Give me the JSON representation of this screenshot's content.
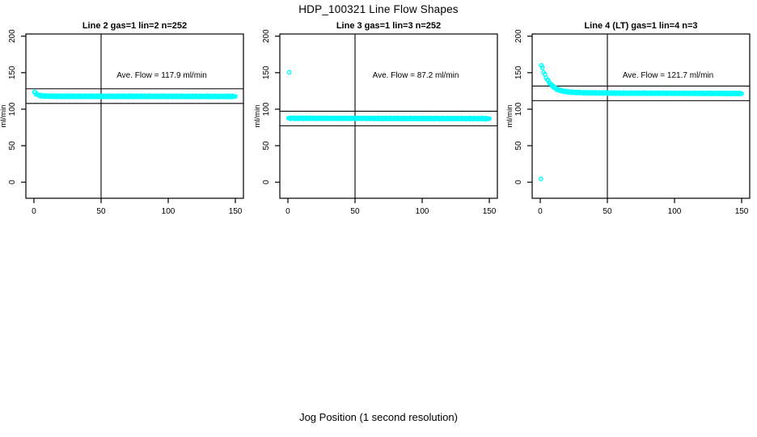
{
  "page": {
    "title": "HDP_100321  Line Flow Shapes",
    "xlabel": "Jog Position (1 second resolution)"
  },
  "colors": {
    "points": "#00FFFF",
    "axis": "#000000",
    "background": "#FFFFFF"
  },
  "chart_data": [
    {
      "type": "scatter",
      "title": "Line 2 gas=1 lin=2 n=252",
      "ylabel": "ml/min",
      "annotation": "Ave. Flow =  117.9  ml/min",
      "ave_flow": 117.9,
      "n": 252,
      "x_ticks": [
        0,
        50,
        100,
        150
      ],
      "y_ticks": [
        0,
        50,
        100,
        150,
        200
      ],
      "xlim": [
        -6,
        156
      ],
      "ylim": [
        -22,
        203
      ],
      "hlines": [
        107.9,
        127.9
      ],
      "vline": 50,
      "jitter": 1.1,
      "profile": [
        [
          0.3,
          123.5
        ],
        [
          0.8,
          122.5
        ],
        [
          1.5,
          121.3
        ],
        [
          2.5,
          120.0
        ],
        [
          3.5,
          119.2
        ],
        [
          5,
          118.5
        ],
        [
          7,
          118.1
        ],
        [
          10,
          117.9
        ],
        [
          20,
          117.7
        ],
        [
          150,
          117.5
        ]
      ],
      "outliers": []
    },
    {
      "type": "scatter",
      "title": "Line 3 gas=1 lin=3 n=252",
      "ylabel": "ml/min",
      "annotation": "Ave. Flow =  87.2  ml/min",
      "ave_flow": 87.2,
      "n": 252,
      "x_ticks": [
        0,
        50,
        100,
        150
      ],
      "y_ticks": [
        0,
        50,
        100,
        150,
        200
      ],
      "xlim": [
        -6,
        156
      ],
      "ylim": [
        -22,
        203
      ],
      "hlines": [
        77.2,
        97.2
      ],
      "vline": 50,
      "jitter": 0.9,
      "profile": [
        [
          0.5,
          87.6
        ],
        [
          75,
          87.3
        ],
        [
          150,
          87.1
        ]
      ],
      "outliers": [
        [
          1,
          150.5
        ]
      ]
    },
    {
      "type": "scatter",
      "title": "Line 4 (LT) gas=1 lin=4 n=3",
      "ylabel": "ml/min",
      "annotation": "Ave. Flow =  121.7  ml/min",
      "ave_flow": 121.7,
      "n": 3,
      "x_ticks": [
        0,
        50,
        100,
        150
      ],
      "y_ticks": [
        0,
        50,
        100,
        150,
        200
      ],
      "xlim": [
        -6,
        156
      ],
      "ylim": [
        -22,
        203
      ],
      "hlines": [
        111.7,
        131.7
      ],
      "vline": 50,
      "jitter": 1.0,
      "profile": [
        [
          0.8,
          160.0
        ],
        [
          1.5,
          156.5
        ],
        [
          2.5,
          151.5
        ],
        [
          3.5,
          147.0
        ],
        [
          4.5,
          143.0
        ],
        [
          6,
          138.5
        ],
        [
          7.5,
          134.8
        ],
        [
          9,
          132.0
        ],
        [
          11,
          129.0
        ],
        [
          13,
          126.8
        ],
        [
          16,
          125.0
        ],
        [
          20,
          123.8
        ],
        [
          26,
          123.0
        ],
        [
          35,
          122.4
        ],
        [
          60,
          122.0
        ],
        [
          100,
          121.8
        ],
        [
          150,
          121.5
        ]
      ],
      "outliers": [
        [
          0.5,
          4.5
        ]
      ]
    }
  ]
}
